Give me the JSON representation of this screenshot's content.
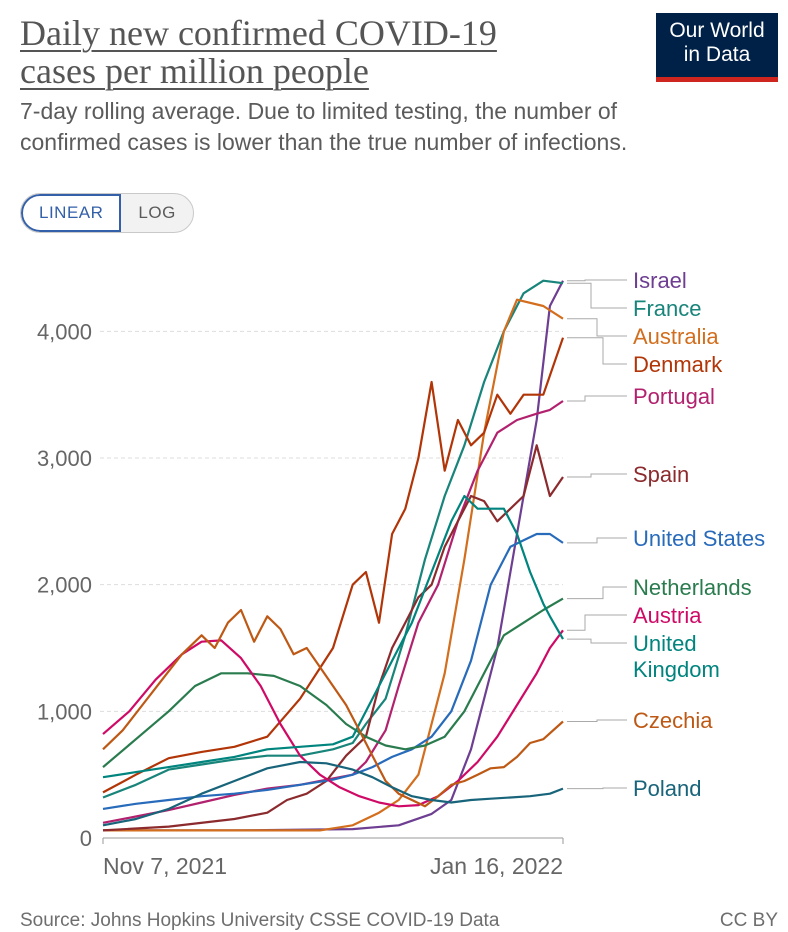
{
  "header": {
    "title_line1": "Daily new confirmed COVID-19",
    "title_line2": "cases per million people",
    "subtitle_line1": "7-day rolling average. Due to limited testing, the number of",
    "subtitle_line2": "confirmed cases is lower than the true number of infections."
  },
  "logo": {
    "line1": "Our World",
    "line2": "in Data"
  },
  "toggle": {
    "linear": "LINEAR",
    "log": "LOG"
  },
  "footer": {
    "source": "Source: Johns Hopkins University CSSE COVID-19 Data",
    "license": "CC BY"
  },
  "chart_data": {
    "type": "line",
    "title": "Daily new confirmed COVID-19 cases per million people",
    "xlabel": "",
    "ylabel": "",
    "x_start_label": "Nov 7, 2021",
    "x_end_label": "Jan 16, 2022",
    "x_range_days": [
      0,
      70
    ],
    "ylim": [
      0,
      4500
    ],
    "yticks": [
      0,
      1000,
      2000,
      3000,
      4000
    ],
    "ytick_labels": [
      "0",
      "1,000",
      "2,000",
      "3,000",
      "4,000"
    ],
    "grid": true,
    "series": [
      {
        "name": "Israel",
        "color": "#6d3e91",
        "points": [
          [
            0,
            60
          ],
          [
            20,
            60
          ],
          [
            38,
            70
          ],
          [
            45,
            100
          ],
          [
            50,
            190
          ],
          [
            53,
            300
          ],
          [
            56,
            700
          ],
          [
            60,
            1500
          ],
          [
            63,
            2400
          ],
          [
            66,
            3300
          ],
          [
            68,
            4200
          ],
          [
            70,
            4400
          ]
        ]
      },
      {
        "name": "France",
        "color": "#18847a",
        "points": [
          [
            0,
            320
          ],
          [
            5,
            420
          ],
          [
            10,
            540
          ],
          [
            15,
            580
          ],
          [
            20,
            620
          ],
          [
            25,
            650
          ],
          [
            30,
            650
          ],
          [
            35,
            700
          ],
          [
            38,
            750
          ],
          [
            40,
            900
          ],
          [
            43,
            1100
          ],
          [
            46,
            1600
          ],
          [
            49,
            2200
          ],
          [
            52,
            2700
          ],
          [
            55,
            3100
          ],
          [
            58,
            3600
          ],
          [
            61,
            4000
          ],
          [
            64,
            4300
          ],
          [
            67,
            4400
          ],
          [
            70,
            4380
          ]
        ]
      },
      {
        "name": "Australia",
        "color": "#d26e1d",
        "points": [
          [
            0,
            60
          ],
          [
            20,
            60
          ],
          [
            33,
            60
          ],
          [
            38,
            100
          ],
          [
            42,
            200
          ],
          [
            45,
            300
          ],
          [
            48,
            500
          ],
          [
            52,
            1300
          ],
          [
            55,
            2200
          ],
          [
            58,
            3200
          ],
          [
            61,
            4000
          ],
          [
            63,
            4250
          ],
          [
            67,
            4200
          ],
          [
            70,
            4100
          ]
        ]
      },
      {
        "name": "Denmark",
        "color": "#b13507",
        "points": [
          [
            0,
            360
          ],
          [
            5,
            500
          ],
          [
            10,
            630
          ],
          [
            15,
            680
          ],
          [
            20,
            720
          ],
          [
            25,
            800
          ],
          [
            30,
            1100
          ],
          [
            35,
            1500
          ],
          [
            38,
            2000
          ],
          [
            40,
            2100
          ],
          [
            42,
            1700
          ],
          [
            44,
            2400
          ],
          [
            46,
            2600
          ],
          [
            48,
            3000
          ],
          [
            50,
            3600
          ],
          [
            52,
            2900
          ],
          [
            54,
            3300
          ],
          [
            56,
            3100
          ],
          [
            58,
            3200
          ],
          [
            60,
            3500
          ],
          [
            62,
            3350
          ],
          [
            64,
            3500
          ],
          [
            67,
            3500
          ],
          [
            70,
            3950
          ]
        ]
      },
      {
        "name": "Portugal",
        "color": "#b2216e",
        "points": [
          [
            0,
            120
          ],
          [
            5,
            170
          ],
          [
            10,
            220
          ],
          [
            15,
            280
          ],
          [
            20,
            340
          ],
          [
            25,
            390
          ],
          [
            30,
            420
          ],
          [
            35,
            470
          ],
          [
            38,
            500
          ],
          [
            40,
            600
          ],
          [
            43,
            850
          ],
          [
            45,
            1200
          ],
          [
            48,
            1700
          ],
          [
            51,
            2000
          ],
          [
            54,
            2500
          ],
          [
            57,
            2900
          ],
          [
            60,
            3200
          ],
          [
            63,
            3300
          ],
          [
            66,
            3350
          ],
          [
            68,
            3380
          ],
          [
            70,
            3450
          ]
        ]
      },
      {
        "name": "Spain",
        "color": "#8c2b2e",
        "points": [
          [
            0,
            60
          ],
          [
            10,
            90
          ],
          [
            20,
            150
          ],
          [
            25,
            200
          ],
          [
            28,
            300
          ],
          [
            31,
            350
          ],
          [
            34,
            450
          ],
          [
            37,
            650
          ],
          [
            40,
            800
          ],
          [
            42,
            1200
          ],
          [
            44,
            1500
          ],
          [
            46,
            1700
          ],
          [
            48,
            1900
          ],
          [
            50,
            2000
          ],
          [
            52,
            2300
          ],
          [
            54,
            2500
          ],
          [
            56,
            2700
          ],
          [
            58,
            2660
          ],
          [
            60,
            2500
          ],
          [
            62,
            2600
          ],
          [
            64,
            2700
          ],
          [
            66,
            3100
          ],
          [
            68,
            2700
          ],
          [
            70,
            2850
          ]
        ]
      },
      {
        "name": "United States",
        "color": "#286bbb",
        "points": [
          [
            0,
            230
          ],
          [
            5,
            270
          ],
          [
            10,
            300
          ],
          [
            15,
            330
          ],
          [
            20,
            350
          ],
          [
            25,
            380
          ],
          [
            30,
            420
          ],
          [
            35,
            460
          ],
          [
            38,
            500
          ],
          [
            41,
            560
          ],
          [
            44,
            640
          ],
          [
            47,
            700
          ],
          [
            50,
            800
          ],
          [
            53,
            1000
          ],
          [
            56,
            1400
          ],
          [
            59,
            2000
          ],
          [
            62,
            2300
          ],
          [
            64,
            2350
          ],
          [
            66,
            2400
          ],
          [
            68,
            2400
          ],
          [
            70,
            2330
          ]
        ]
      },
      {
        "name": "Netherlands",
        "color": "#2a7c4f",
        "points": [
          [
            0,
            560
          ],
          [
            5,
            780
          ],
          [
            10,
            1000
          ],
          [
            14,
            1200
          ],
          [
            18,
            1300
          ],
          [
            22,
            1300
          ],
          [
            26,
            1280
          ],
          [
            30,
            1200
          ],
          [
            34,
            1050
          ],
          [
            37,
            900
          ],
          [
            40,
            800
          ],
          [
            43,
            730
          ],
          [
            46,
            700
          ],
          [
            49,
            730
          ],
          [
            52,
            800
          ],
          [
            55,
            1000
          ],
          [
            58,
            1300
          ],
          [
            61,
            1600
          ],
          [
            64,
            1700
          ],
          [
            67,
            1800
          ],
          [
            70,
            1890
          ]
        ]
      },
      {
        "name": "Austria",
        "color": "#cf0a66",
        "points": [
          [
            0,
            820
          ],
          [
            4,
            1000
          ],
          [
            8,
            1250
          ],
          [
            12,
            1450
          ],
          [
            15,
            1550
          ],
          [
            18,
            1560
          ],
          [
            21,
            1420
          ],
          [
            24,
            1200
          ],
          [
            27,
            900
          ],
          [
            30,
            650
          ],
          [
            33,
            500
          ],
          [
            36,
            400
          ],
          [
            39,
            330
          ],
          [
            42,
            280
          ],
          [
            45,
            250
          ],
          [
            48,
            260
          ],
          [
            51,
            330
          ],
          [
            54,
            450
          ],
          [
            57,
            600
          ],
          [
            60,
            800
          ],
          [
            63,
            1050
          ],
          [
            66,
            1300
          ],
          [
            68,
            1500
          ],
          [
            70,
            1640
          ]
        ]
      },
      {
        "name": "United Kingdom",
        "color": "#00847e",
        "points": [
          [
            0,
            480
          ],
          [
            5,
            520
          ],
          [
            10,
            560
          ],
          [
            15,
            600
          ],
          [
            20,
            640
          ],
          [
            25,
            700
          ],
          [
            30,
            720
          ],
          [
            35,
            740
          ],
          [
            38,
            800
          ],
          [
            41,
            1100
          ],
          [
            44,
            1400
          ],
          [
            47,
            1700
          ],
          [
            50,
            2100
          ],
          [
            53,
            2500
          ],
          [
            55,
            2700
          ],
          [
            57,
            2600
          ],
          [
            59,
            2600
          ],
          [
            61,
            2600
          ],
          [
            63,
            2400
          ],
          [
            65,
            2100
          ],
          [
            67,
            1850
          ],
          [
            68,
            1750
          ],
          [
            70,
            1570
          ]
        ]
      },
      {
        "name": "Czechia",
        "color": "#be5915",
        "points": [
          [
            0,
            700
          ],
          [
            3,
            850
          ],
          [
            6,
            1050
          ],
          [
            9,
            1250
          ],
          [
            12,
            1450
          ],
          [
            15,
            1600
          ],
          [
            17,
            1500
          ],
          [
            19,
            1700
          ],
          [
            21,
            1800
          ],
          [
            23,
            1550
          ],
          [
            25,
            1750
          ],
          [
            27,
            1650
          ],
          [
            29,
            1450
          ],
          [
            31,
            1500
          ],
          [
            33,
            1350
          ],
          [
            35,
            1200
          ],
          [
            37,
            1050
          ],
          [
            39,
            850
          ],
          [
            41,
            650
          ],
          [
            43,
            450
          ],
          [
            45,
            350
          ],
          [
            47,
            300
          ],
          [
            49,
            250
          ],
          [
            51,
            330
          ],
          [
            53,
            420
          ],
          [
            55,
            450
          ],
          [
            57,
            500
          ],
          [
            59,
            550
          ],
          [
            61,
            560
          ],
          [
            63,
            640
          ],
          [
            65,
            750
          ],
          [
            67,
            780
          ],
          [
            70,
            920
          ]
        ]
      },
      {
        "name": "Poland",
        "color": "#18647a",
        "points": [
          [
            0,
            100
          ],
          [
            5,
            150
          ],
          [
            10,
            230
          ],
          [
            15,
            350
          ],
          [
            20,
            450
          ],
          [
            25,
            550
          ],
          [
            30,
            600
          ],
          [
            34,
            590
          ],
          [
            38,
            540
          ],
          [
            41,
            480
          ],
          [
            44,
            400
          ],
          [
            47,
            330
          ],
          [
            50,
            300
          ],
          [
            53,
            280
          ],
          [
            56,
            300
          ],
          [
            59,
            310
          ],
          [
            62,
            320
          ],
          [
            65,
            330
          ],
          [
            68,
            350
          ],
          [
            70,
            390
          ]
        ]
      }
    ],
    "labels": [
      {
        "series": "Israel",
        "text": "Israel",
        "color": "#6d3e91"
      },
      {
        "series": "France",
        "text": "France",
        "color": "#18847a"
      },
      {
        "series": "Australia",
        "text": "Australia",
        "color": "#d26e1d"
      },
      {
        "series": "Denmark",
        "text": "Denmark",
        "color": "#b13507"
      },
      {
        "series": "Portugal",
        "text": "Portugal",
        "color": "#b2216e"
      },
      {
        "series": "Spain",
        "text": "Spain",
        "color": "#8c2b2e"
      },
      {
        "series": "United States",
        "text": "United States",
        "color": "#286bbb"
      },
      {
        "series": "Netherlands",
        "text": "Netherlands",
        "color": "#2a7c4f"
      },
      {
        "series": "Austria",
        "text": "Austria",
        "color": "#cf0a66"
      },
      {
        "series": "United Kingdom",
        "text": "United",
        "text2": "Kingdom",
        "color": "#00847e"
      },
      {
        "series": "Czechia",
        "text": "Czechia",
        "color": "#be5915"
      },
      {
        "series": "Poland",
        "text": "Poland",
        "color": "#18647a"
      }
    ]
  }
}
